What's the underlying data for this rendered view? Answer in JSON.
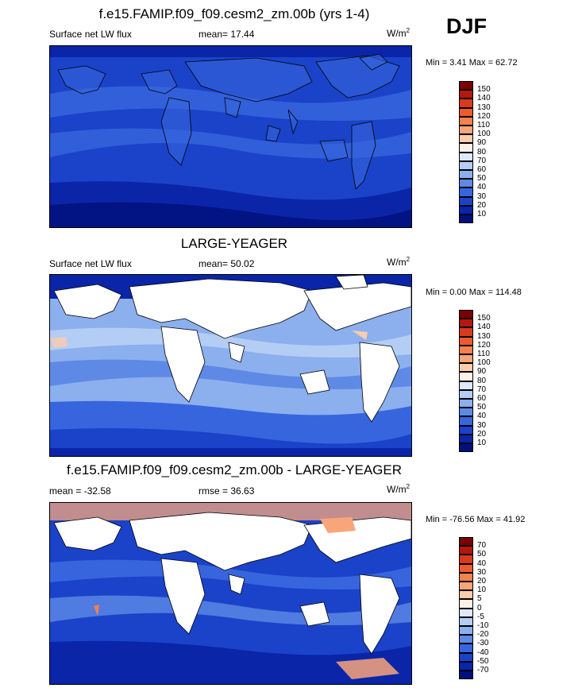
{
  "season": "DJF",
  "panels": [
    {
      "title": "f.e15.FAMIP.f09_f09.cesm2_zm.00b (yrs 1-4)",
      "left_label": "Surface net LW flux",
      "center_label": "mean=  17.44",
      "units": "W/m",
      "units_exp": "2",
      "minmax": "Min =   3.41 Max =  62.72",
      "colorbar_labels": [
        "150",
        "140",
        "130",
        "120",
        "110",
        "100",
        "90",
        "80",
        "70",
        "60",
        "50",
        "40",
        "30",
        "20",
        "10"
      ],
      "colorbar_colors": [
        "#7a0000",
        "#b2180e",
        "#d83a1e",
        "#ee5a2e",
        "#f5814f",
        "#f9a57a",
        "#fcccae",
        "#fdf0e6",
        "#dce8fb",
        "#b4cdf5",
        "#8cafee",
        "#5e8ae6",
        "#3765dd",
        "#1a43c9",
        "#0a25a8",
        "#000f7a"
      ]
    },
    {
      "title": "LARGE-YEAGER",
      "left_label": "Surface net LW flux",
      "center_label": "mean=  50.02",
      "units": "W/m",
      "units_exp": "2",
      "minmax": "Min =   0.00 Max = 114.48",
      "colorbar_labels": [
        "150",
        "140",
        "130",
        "120",
        "110",
        "100",
        "90",
        "80",
        "70",
        "60",
        "50",
        "40",
        "30",
        "20",
        "10"
      ],
      "colorbar_colors": [
        "#7a0000",
        "#b2180e",
        "#d83a1e",
        "#ee5a2e",
        "#f5814f",
        "#f9a57a",
        "#fcccae",
        "#fdf0e6",
        "#dce8fb",
        "#b4cdf5",
        "#8cafee",
        "#5e8ae6",
        "#3765dd",
        "#1a43c9",
        "#0a25a8",
        "#000f7a"
      ]
    },
    {
      "title": "f.e15.FAMIP.f09_f09.cesm2_zm.00b - LARGE-YEAGER",
      "left_label": "mean = -32.58",
      "center_label": "rmse =  36.63",
      "units": "W/m",
      "units_exp": "2",
      "minmax": "Min = -76.56 Max =  41.92",
      "colorbar_labels": [
        "70",
        "50",
        "40",
        "30",
        "20",
        "10",
        "5",
        "0",
        "-5",
        "-10",
        "-20",
        "-30",
        "-40",
        "-50",
        "-70"
      ],
      "colorbar_colors": [
        "#7a0000",
        "#b2180e",
        "#d83a1e",
        "#ee5a2e",
        "#f5814f",
        "#f9a57a",
        "#fcccae",
        "#fdf0e6",
        "#dce8fb",
        "#b4cdf5",
        "#8cafee",
        "#5e8ae6",
        "#3765dd",
        "#1a43c9",
        "#0a25a8",
        "#000f7a"
      ]
    }
  ]
}
